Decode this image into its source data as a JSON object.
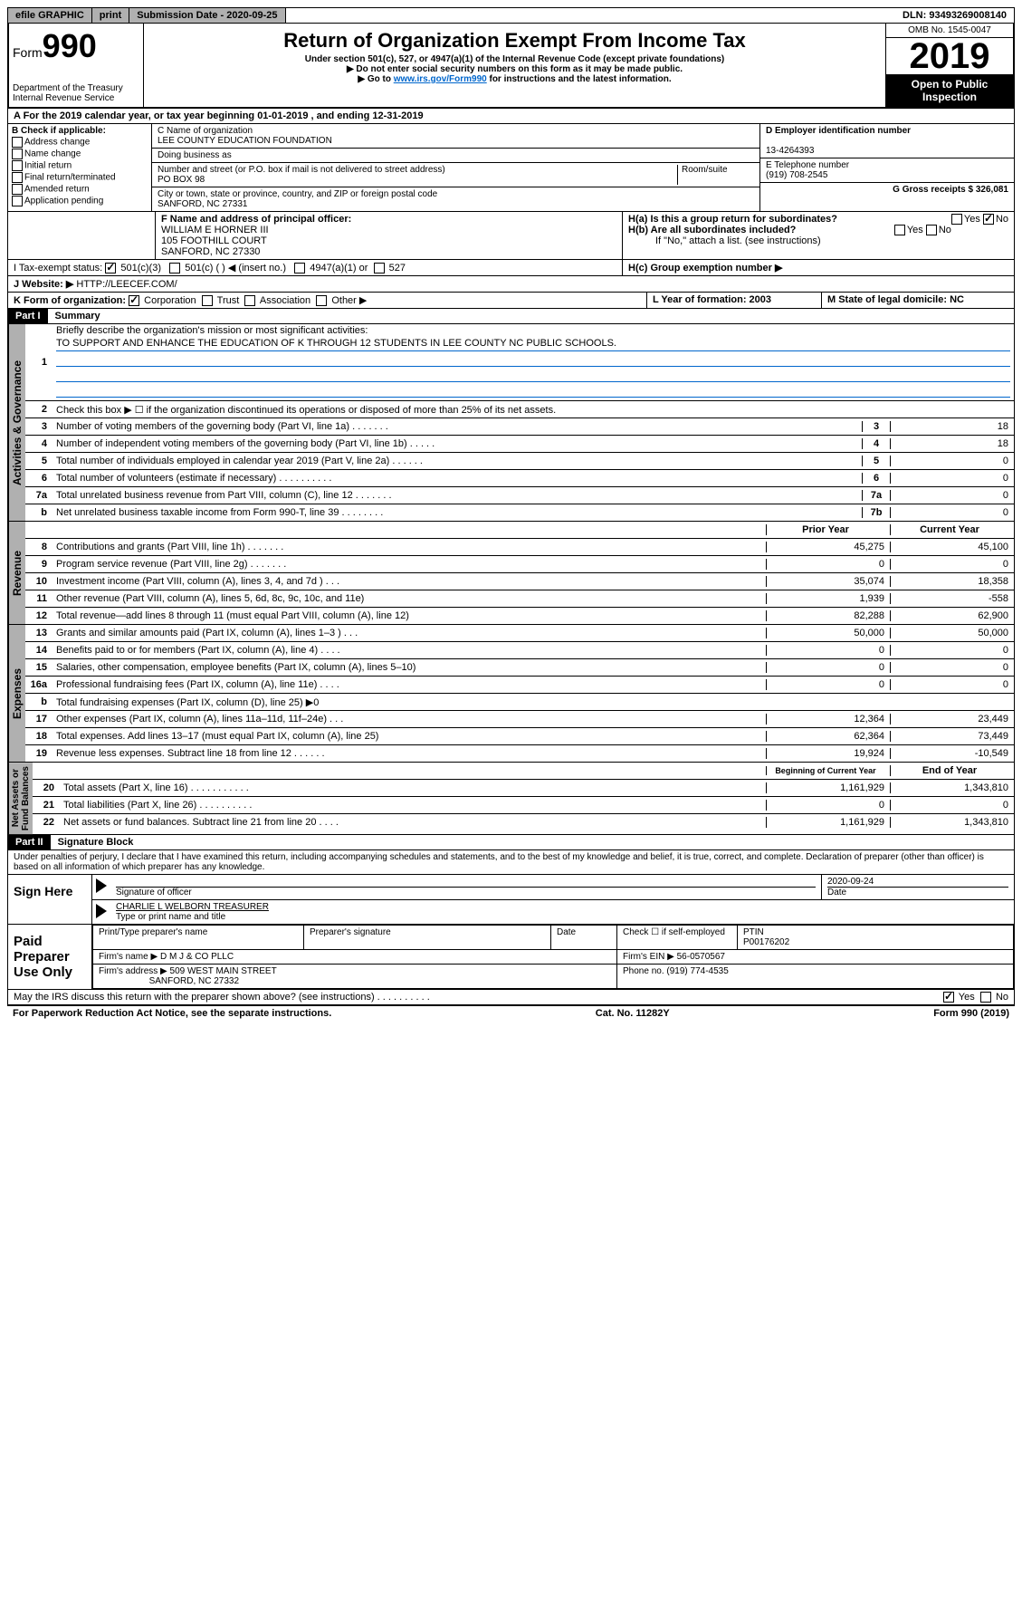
{
  "top": {
    "efile": "efile GRAPHIC",
    "print": "print",
    "sub_date_label": "Submission Date - 2020-09-25",
    "dln": "DLN: 93493269008140"
  },
  "header": {
    "form_prefix": "Form",
    "form_num": "990",
    "dept": "Department of the Treasury\nInternal Revenue Service",
    "title": "Return of Organization Exempt From Income Tax",
    "sub1": "Under section 501(c), 527, or 4947(a)(1) of the Internal Revenue Code (except private foundations)",
    "sub2": "▶ Do not enter social security numbers on this form as it may be made public.",
    "sub3_pre": "▶ Go to ",
    "sub3_link": "www.irs.gov/Form990",
    "sub3_post": " for instructions and the latest information.",
    "omb": "OMB No. 1545-0047",
    "year": "2019",
    "open": "Open to Public\nInspection"
  },
  "line_a": "A For the 2019 calendar year, or tax year beginning 01-01-2019   , and ending 12-31-2019",
  "box_b": {
    "label": "B Check if applicable:",
    "opts": [
      "Address change",
      "Name change",
      "Initial return",
      "Final return/terminated",
      "Amended return",
      "Application pending"
    ]
  },
  "box_c": {
    "name_label": "C Name of organization",
    "name": "LEE COUNTY EDUCATION FOUNDATION",
    "dba_label": "Doing business as",
    "dba": "",
    "addr_label": "Number and street (or P.O. box if mail is not delivered to street address)",
    "room_label": "Room/suite",
    "addr": "PO BOX 98",
    "city_label": "City or town, state or province, country, and ZIP or foreign postal code",
    "city": "SANFORD, NC 27331"
  },
  "box_d": {
    "ein_label": "D Employer identification number",
    "ein": "13-4264393",
    "tel_label": "E Telephone number",
    "tel": "(919) 708-2545",
    "gross_label": "G Gross receipts $ 326,081"
  },
  "box_f": {
    "label": "F  Name and address of principal officer:",
    "name": "WILLIAM E HORNER III",
    "addr1": "105 FOOTHILL COURT",
    "addr2": "SANFORD, NC  27330"
  },
  "box_h": {
    "a": "H(a)  Is this a group return for subordinates?",
    "b": "H(b)  Are all subordinates included?",
    "b_note": "If \"No,\" attach a list. (see instructions)",
    "c": "H(c)  Group exemption number ▶",
    "yes": "Yes",
    "no": "No"
  },
  "box_i": {
    "label": "I   Tax-exempt status:",
    "o1": "501(c)(3)",
    "o2": "501(c) (  ) ◀ (insert no.)",
    "o3": "4947(a)(1) or",
    "o4": "527"
  },
  "box_j": {
    "label": "J   Website: ▶",
    "url": "HTTP://LEECEF.COM/"
  },
  "box_k": {
    "label": "K Form of organization:",
    "o1": "Corporation",
    "o2": "Trust",
    "o3": "Association",
    "o4": "Other ▶"
  },
  "box_l": {
    "label": "L Year of formation: 2003"
  },
  "box_m": {
    "label": "M State of legal domicile: NC"
  },
  "part1": {
    "header": "Part I",
    "title": "Summary",
    "l1": "Briefly describe the organization's mission or most significant activities:",
    "mission": "TO SUPPORT AND ENHANCE THE EDUCATION OF K THROUGH 12 STUDENTS IN LEE COUNTY NC PUBLIC SCHOOLS.",
    "l2": "Check this box ▶ ☐  if the organization discontinued its operations or disposed of more than 25% of its net assets.",
    "lines_gov": [
      {
        "n": "3",
        "d": "Number of voting members of the governing body (Part VI, line 1a)  .    .    .    .    .    .    .",
        "box": "3",
        "v": "18"
      },
      {
        "n": "4",
        "d": "Number of independent voting members of the governing body (Part VI, line 1b)   .    .    .    .    .",
        "box": "4",
        "v": "18"
      },
      {
        "n": "5",
        "d": "Total number of individuals employed in calendar year 2019 (Part V, line 2a)  .    .    .    .    .    .",
        "box": "5",
        "v": "0"
      },
      {
        "n": "6",
        "d": "Total number of volunteers (estimate if necessary)   .    .    .    .    .    .    .    .    .    .",
        "box": "6",
        "v": "0"
      },
      {
        "n": "7a",
        "d": "Total unrelated business revenue from Part VIII, column (C), line 12   .    .    .    .    .    .    .",
        "box": "7a",
        "v": "0"
      },
      {
        "n": "b",
        "d": "Net unrelated business taxable income from Form 990-T, line 39   .    .    .    .    .    .    .    .",
        "box": "7b",
        "v": "0"
      }
    ],
    "col_prior": "Prior Year",
    "col_current": "Current Year",
    "lines_rev": [
      {
        "n": "8",
        "d": "Contributions and grants (Part VIII, line 1h)   .    .    .    .    .    .    .",
        "p": "45,275",
        "c": "45,100"
      },
      {
        "n": "9",
        "d": "Program service revenue (Part VIII, line 2g)   .    .    .    .    .    .    .",
        "p": "0",
        "c": "0"
      },
      {
        "n": "10",
        "d": "Investment income (Part VIII, column (A), lines 3, 4, and 7d )   .    .    .",
        "p": "35,074",
        "c": "18,358"
      },
      {
        "n": "11",
        "d": "Other revenue (Part VIII, column (A), lines 5, 6d, 8c, 9c, 10c, and 11e)",
        "p": "1,939",
        "c": "-558"
      },
      {
        "n": "12",
        "d": "Total revenue—add lines 8 through 11 (must equal Part VIII, column (A), line 12)",
        "p": "82,288",
        "c": "62,900"
      }
    ],
    "lines_exp": [
      {
        "n": "13",
        "d": "Grants and similar amounts paid (Part IX, column (A), lines 1–3 )   .    .    .",
        "p": "50,000",
        "c": "50,000"
      },
      {
        "n": "14",
        "d": "Benefits paid to or for members (Part IX, column (A), line 4)   .    .    .    .",
        "p": "0",
        "c": "0"
      },
      {
        "n": "15",
        "d": "Salaries, other compensation, employee benefits (Part IX, column (A), lines 5–10)",
        "p": "0",
        "c": "0"
      },
      {
        "n": "16a",
        "d": "Professional fundraising fees (Part IX, column (A), line 11e)   .    .    .    .",
        "p": "0",
        "c": "0"
      },
      {
        "n": "b",
        "d": "Total fundraising expenses (Part IX, column (D), line 25) ▶0",
        "p": "",
        "c": "",
        "gray": true
      },
      {
        "n": "17",
        "d": "Other expenses (Part IX, column (A), lines 11a–11d, 11f–24e)   .    .    .",
        "p": "12,364",
        "c": "23,449"
      },
      {
        "n": "18",
        "d": "Total expenses. Add lines 13–17 (must equal Part IX, column (A), line 25)",
        "p": "62,364",
        "c": "73,449"
      },
      {
        "n": "19",
        "d": "Revenue less expenses. Subtract line 18 from line 12   .    .    .    .    .    .",
        "p": "19,924",
        "c": "-10,549"
      }
    ],
    "col_beg": "Beginning of Current Year",
    "col_end": "End of Year",
    "lines_net": [
      {
        "n": "20",
        "d": "Total assets (Part X, line 16)   .    .    .    .    .    .    .    .    .    .    .",
        "p": "1,161,929",
        "c": "1,343,810"
      },
      {
        "n": "21",
        "d": "Total liabilities (Part X, line 26)   .    .    .    .    .    .    .    .    .    .",
        "p": "0",
        "c": "0"
      },
      {
        "n": "22",
        "d": "Net assets or fund balances. Subtract line 21 from line 20   .    .    .    .",
        "p": "1,161,929",
        "c": "1,343,810"
      }
    ],
    "vert_gov": "Activities & Governance",
    "vert_rev": "Revenue",
    "vert_exp": "Expenses",
    "vert_net": "Net Assets or\nFund Balances"
  },
  "part2": {
    "header": "Part II",
    "title": "Signature Block",
    "perjury": "Under penalties of perjury, I declare that I have examined this return, including accompanying schedules and statements, and to the best of my knowledge and belief, it is true, correct, and complete. Declaration of preparer (other than officer) is based on all information of which preparer has any knowledge.",
    "sign_here": "Sign Here",
    "sig_officer": "Signature of officer",
    "sig_date": "2020-09-24",
    "date_label": "Date",
    "officer_name": "CHARLIE L WELBORN  TREASURER",
    "type_name": "Type or print name and title",
    "paid": "Paid Preparer Use Only",
    "prep_name_label": "Print/Type preparer's name",
    "prep_sig_label": "Preparer's signature",
    "prep_date_label": "Date",
    "check_label": "Check ☐ if self-employed",
    "ptin_label": "PTIN",
    "ptin": "P00176202",
    "firm_name_label": "Firm's name    ▶",
    "firm_name": "D M J & CO PLLC",
    "firm_ein_label": "Firm's EIN ▶",
    "firm_ein": "56-0570567",
    "firm_addr_label": "Firm's address ▶",
    "firm_addr1": "509 WEST MAIN STREET",
    "firm_addr2": "SANFORD, NC  27332",
    "phone_label": "Phone no.",
    "phone": "(919) 774-4535",
    "discuss": "May the IRS discuss this return with the preparer shown above? (see instructions)    .    .    .    .    .    .    .    .    .    ."
  },
  "footer": {
    "pra": "For Paperwork Reduction Act Notice, see the separate instructions.",
    "cat": "Cat. No. 11282Y",
    "form": "Form 990 (2019)"
  }
}
